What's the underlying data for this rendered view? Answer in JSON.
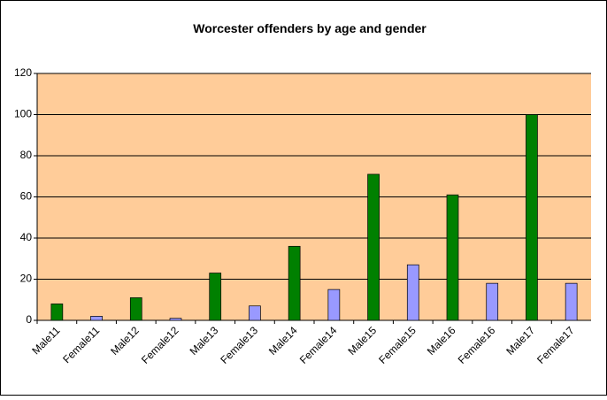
{
  "chart_data": {
    "type": "bar",
    "title": "Worcester offenders by age and gender",
    "categories": [
      "Male11",
      "Female11",
      "Male12",
      "Female12",
      "Male13",
      "Female13",
      "Male14",
      "Female14",
      "Male15",
      "Female15",
      "Male16",
      "Female16",
      "Male17",
      "Female17"
    ],
    "values": [
      8,
      2,
      11,
      1,
      23,
      7,
      36,
      15,
      71,
      27,
      61,
      18,
      100,
      18
    ],
    "colors": [
      "#008000",
      "#9999ff",
      "#008000",
      "#9999ff",
      "#008000",
      "#9999ff",
      "#008000",
      "#9999ff",
      "#008000",
      "#9999ff",
      "#008000",
      "#9999ff",
      "#008000",
      "#9999ff"
    ],
    "plot_background": "#ffcc99",
    "ylim": [
      0,
      120
    ],
    "yticks": [
      0,
      20,
      40,
      60,
      80,
      100,
      120
    ],
    "grid": true
  }
}
